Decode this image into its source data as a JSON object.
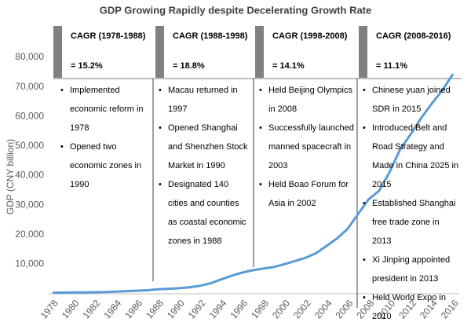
{
  "chart_data": {
    "type": "line",
    "title": "GDP Growing Rapidly despite Decelerating Growth Rate",
    "y_label": "GDP (CNY billion)",
    "x": [
      1978,
      1979,
      1980,
      1981,
      1982,
      1983,
      1984,
      1985,
      1986,
      1987,
      1988,
      1989,
      1990,
      1991,
      1992,
      1993,
      1994,
      1995,
      1996,
      1997,
      1998,
      1999,
      2000,
      2001,
      2002,
      2003,
      2004,
      2005,
      2006,
      2007,
      2008,
      2009,
      2010,
      2011,
      2012,
      2013,
      2014,
      2015,
      2016
    ],
    "values": [
      368,
      410,
      459,
      489,
      532,
      596,
      721,
      902,
      1028,
      1206,
      1504,
      1700,
      1887,
      2201,
      2719,
      3567,
      4864,
      6134,
      7171,
      7972,
      8520,
      9056,
      10028,
      11086,
      12172,
      13742,
      16184,
      18732,
      21944,
      27023,
      31952,
      34908,
      41303,
      48930,
      54037,
      59524,
      64397,
      68905,
      74359
    ],
    "color": "#5b9bd5",
    "xlim": [
      1978,
      2016
    ],
    "xticks": [
      1978,
      1980,
      1982,
      1984,
      1986,
      1988,
      1990,
      1992,
      1994,
      1996,
      1998,
      2000,
      2002,
      2004,
      2006,
      2008,
      2010,
      2012,
      2014,
      2016
    ],
    "ylim": [
      0,
      80000
    ],
    "yticks": [
      {
        "value": 10000,
        "label": "10,000"
      },
      {
        "value": 20000,
        "label": "20,000"
      },
      {
        "value": 30000,
        "label": "30,000"
      },
      {
        "value": 40000,
        "label": "40,000"
      },
      {
        "value": 50000,
        "label": "50,000"
      },
      {
        "value": 60000,
        "label": "60,000"
      },
      {
        "value": 70000,
        "label": "70,000"
      },
      {
        "value": 80000,
        "label": "80,000"
      }
    ],
    "annotations": [
      {
        "header": "CAGR (1978-1988)",
        "cagr": "= 15.2%",
        "events": [
          "Implemented economic reform in 1978",
          "Opened two economic zones in 1990"
        ]
      },
      {
        "header": "CAGR (1988-1998)",
        "cagr": "= 18.8%",
        "events": [
          "Macau returned in 1997",
          "Opened Shanghai and Shenzhen Stock Market in 1990",
          "Designated 140 cities and counties as coastal economic zones in 1988"
        ]
      },
      {
        "header": "CAGR (1998-2008)",
        "cagr": "= 14.1%",
        "events": [
          "Held Beijing Olympics in 2008",
          "Successfully launched manned spacecraft in 2003",
          "Held Boao Forum for Asia in 2002"
        ]
      },
      {
        "header": "CAGR (2008-2016)",
        "cagr": "= 11.1%",
        "events": [
          "Chinese yuan joined SDR in 2015",
          "Introduced Belt and Road Strategy and Made in China 2025 in 2015",
          "Established Shanghai free trade zone in 2013",
          "Xi Jinping appointed president in 2013",
          "Held World Expo in 2010"
        ]
      }
    ]
  }
}
